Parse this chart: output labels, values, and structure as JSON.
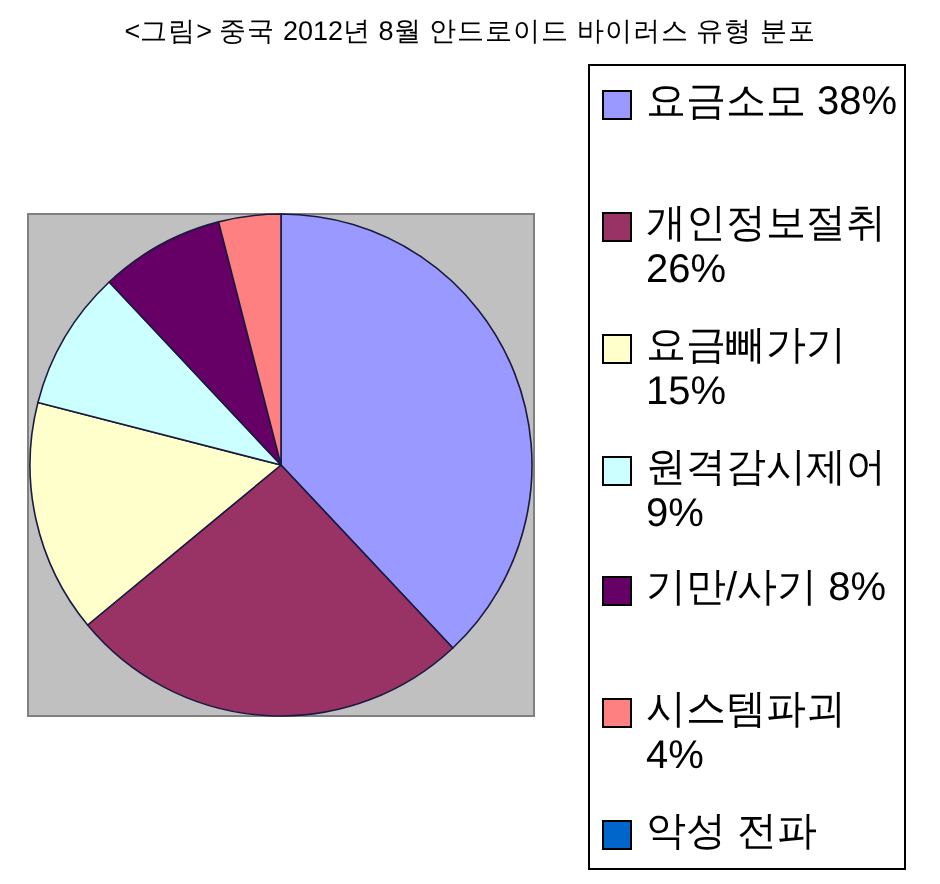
{
  "chart_data": {
    "type": "pie",
    "title": "<그림> 중국 2012년 8월 안드로이드 바이러스 유형 분포",
    "categories": [
      "요금소모 38%",
      "개인정보절취 26%",
      "요금빼가기 15%",
      "원격감시제어 9%",
      "기만/사기 8%",
      "시스템파괴 4%",
      "악성 전파"
    ],
    "values": [
      38,
      26,
      15,
      9,
      8,
      4,
      0
    ],
    "colors": [
      "#9999ff",
      "#993366",
      "#ffffcc",
      "#ccffff",
      "#660066",
      "#ff8080",
      "#0066cc"
    ],
    "legend": "right"
  }
}
